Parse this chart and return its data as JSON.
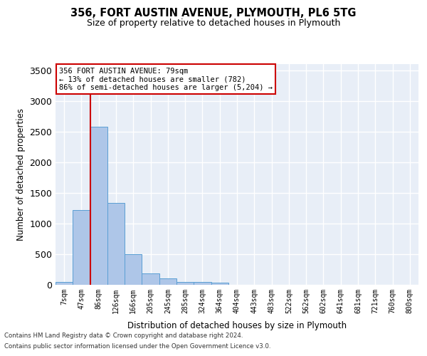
{
  "title_line1": "356, FORT AUSTIN AVENUE, PLYMOUTH, PL6 5TG",
  "title_line2": "Size of property relative to detached houses in Plymouth",
  "xlabel": "Distribution of detached houses by size in Plymouth",
  "ylabel": "Number of detached properties",
  "bin_labels": [
    "7sqm",
    "47sqm",
    "86sqm",
    "126sqm",
    "166sqm",
    "205sqm",
    "245sqm",
    "285sqm",
    "324sqm",
    "364sqm",
    "404sqm",
    "443sqm",
    "483sqm",
    "522sqm",
    "562sqm",
    "602sqm",
    "641sqm",
    "681sqm",
    "721sqm",
    "760sqm",
    "800sqm"
  ],
  "bar_values": [
    50,
    1220,
    2580,
    1340,
    500,
    190,
    100,
    50,
    45,
    30,
    0,
    0,
    0,
    0,
    0,
    0,
    0,
    0,
    0,
    0,
    0
  ],
  "bar_color": "#aec6e8",
  "bar_edge_color": "#5a9fd4",
  "vline_bin_index": 1,
  "vline_color": "#cc0000",
  "annotation_line1": "356 FORT AUSTIN AVENUE: 79sqm",
  "annotation_line2": "← 13% of detached houses are smaller (782)",
  "annotation_line3": "86% of semi-detached houses are larger (5,204) →",
  "annotation_box_facecolor": "#ffffff",
  "annotation_box_edgecolor": "#cc0000",
  "ylim": [
    0,
    3600
  ],
  "yticks": [
    0,
    500,
    1000,
    1500,
    2000,
    2500,
    3000,
    3500
  ],
  "background_color": "#e8eef7",
  "grid_color": "#ffffff",
  "footnote1": "Contains HM Land Registry data © Crown copyright and database right 2024.",
  "footnote2": "Contains public sector information licensed under the Open Government Licence v3.0."
}
